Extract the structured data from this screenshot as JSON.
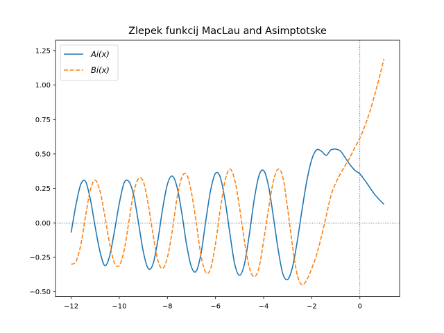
{
  "chart_data": {
    "type": "line",
    "title": "Zlepek funkcij MacLau and Asimptotske",
    "xlabel": "",
    "ylabel": "",
    "xlim": [
      -12.65,
      1.65
    ],
    "ylim": [
      -0.535,
      1.325
    ],
    "xticks": [
      -12,
      -10,
      -8,
      -6,
      -4,
      -2,
      0
    ],
    "xtick_labels": [
      "−12",
      "−10",
      "−8",
      "−6",
      "−4",
      "−2",
      "0"
    ],
    "yticks": [
      -0.5,
      -0.25,
      0.0,
      0.25,
      0.5,
      0.75,
      1.0,
      1.25
    ],
    "ytick_labels": [
      "−0.50",
      "−0.25",
      "0.00",
      "0.25",
      "0.50",
      "0.75",
      "1.00",
      "1.25"
    ],
    "grid": false,
    "reference_lines": {
      "x": 0,
      "y": 0,
      "style": "dotted"
    },
    "legend_position": "top-left",
    "x_range": [
      -12,
      1
    ],
    "series": [
      {
        "name": "Ai(x)",
        "color": "#1f77b4",
        "style": "solid",
        "x": [
          -12,
          -11.8,
          -11.6,
          -11.4,
          -11.2,
          -11,
          -10.8,
          -10.6,
          -10.4,
          -10.2,
          -10,
          -9.8,
          -9.6,
          -9.4,
          -9.2,
          -9,
          -8.8,
          -8.6,
          -8.4,
          -8.2,
          -8,
          -7.8,
          -7.6,
          -7.4,
          -7.2,
          -7,
          -6.8,
          -6.6,
          -6.4,
          -6.2,
          -6,
          -5.8,
          -5.6,
          -5.4,
          -5.2,
          -5,
          -4.8,
          -4.6,
          -4.4,
          -4.2,
          -4,
          -3.8,
          -3.6,
          -3.4,
          -3.2,
          -3,
          -2.8,
          -2.6,
          -2.4,
          -2.2,
          -2,
          -1.8,
          -1.6,
          -1.4,
          -1.2,
          -1,
          -0.8,
          -0.6,
          -0.4,
          -0.2,
          0,
          0.2,
          0.4,
          0.6,
          0.8,
          1
        ],
        "y": [
          -0.07,
          0.13,
          0.28,
          0.3,
          0.17,
          -0.03,
          -0.21,
          -0.31,
          -0.24,
          -0.06,
          0.14,
          0.29,
          0.3,
          0.2,
          0,
          -0.21,
          -0.33,
          -0.3,
          -0.13,
          0.1,
          0.28,
          0.34,
          0.26,
          0.07,
          -0.16,
          -0.32,
          -0.35,
          -0.22,
          0.02,
          0.24,
          0.36,
          0.33,
          0.16,
          -0.08,
          -0.3,
          -0.38,
          -0.3,
          -0.09,
          0.16,
          0.34,
          0.38,
          0.27,
          0.05,
          -0.19,
          -0.37,
          -0.41,
          -0.32,
          -0.13,
          0.1,
          0.31,
          0.46,
          0.53,
          0.52,
          0.49,
          0.53,
          0.535,
          0.52,
          0.47,
          0.42,
          0.38,
          0.355,
          0.31,
          0.26,
          0.21,
          0.17,
          0.135
        ]
      },
      {
        "name": "Bi(x)",
        "color": "#ff7f0e",
        "style": "dashed",
        "x": [
          -12,
          -11.8,
          -11.6,
          -11.4,
          -11.2,
          -11,
          -10.8,
          -10.6,
          -10.4,
          -10.2,
          -10,
          -9.8,
          -9.6,
          -9.4,
          -9.2,
          -9,
          -8.8,
          -8.6,
          -8.4,
          -8.2,
          -8,
          -7.8,
          -7.6,
          -7.4,
          -7.2,
          -7,
          -6.8,
          -6.6,
          -6.4,
          -6.2,
          -6,
          -5.8,
          -5.6,
          -5.4,
          -5.2,
          -5,
          -4.8,
          -4.6,
          -4.4,
          -4.2,
          -4,
          -3.8,
          -3.6,
          -3.4,
          -3.2,
          -3,
          -2.8,
          -2.6,
          -2.4,
          -2.2,
          -2,
          -1.8,
          -1.6,
          -1.4,
          -1.2,
          -1,
          -0.8,
          -0.6,
          -0.4,
          -0.2,
          0,
          0.2,
          0.4,
          0.6,
          0.8,
          1
        ],
        "y": [
          -0.3,
          -0.28,
          -0.16,
          0.05,
          0.24,
          0.31,
          0.23,
          0.05,
          -0.15,
          -0.29,
          -0.31,
          -0.2,
          0.01,
          0.22,
          0.32,
          0.3,
          0.14,
          -0.08,
          -0.27,
          -0.33,
          -0.25,
          -0.06,
          0.18,
          0.33,
          0.35,
          0.22,
          0,
          -0.24,
          -0.36,
          -0.33,
          -0.15,
          0.1,
          0.31,
          0.39,
          0.31,
          0.11,
          -0.13,
          -0.32,
          -0.39,
          -0.33,
          -0.13,
          0.1,
          0.3,
          0.39,
          0.33,
          0.1,
          -0.17,
          -0.38,
          -0.45,
          -0.41,
          -0.33,
          -0.23,
          -0.1,
          0.05,
          0.2,
          0.29,
          0.36,
          0.42,
          0.48,
          0.55,
          0.615,
          0.7,
          0.8,
          0.92,
          1.05,
          1.19
        ]
      }
    ]
  }
}
